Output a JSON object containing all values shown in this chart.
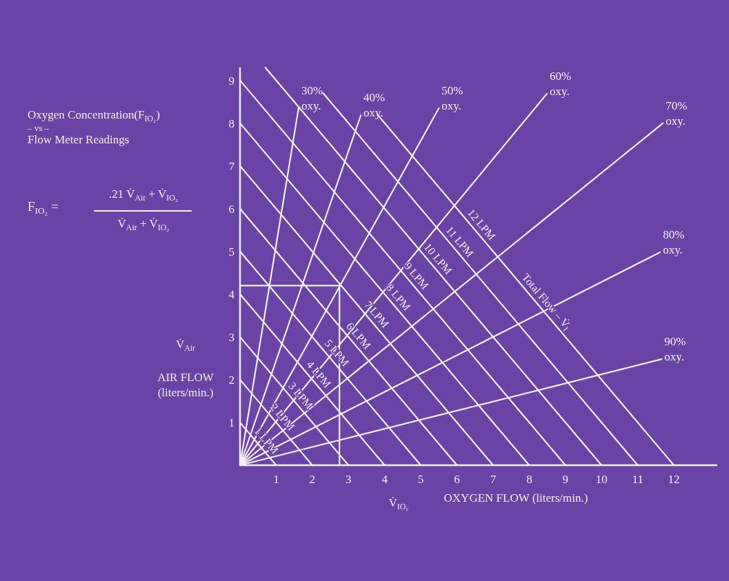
{
  "chart_data": {
    "type": "line",
    "title": "Oxygen Concentration(F$_{IO₂}$)\n– vs –\nFlow Meter Readings",
    "xlabel": "OXYGEN FLOW (liters/min.)",
    "ylabel": "AIR FLOW\n(liters/min.)",
    "xlim": [
      0,
      13.2
    ],
    "ylim": [
      0,
      9.3
    ],
    "xticks": [
      1,
      2,
      3,
      4,
      5,
      6,
      7,
      8,
      9,
      10,
      11,
      12
    ],
    "yticks": [
      1,
      2,
      3,
      4,
      5,
      6,
      7,
      8,
      9
    ],
    "grid": false,
    "marker": "none",
    "line_style": "solid",
    "series": [
      {
        "name": "30% oxy.",
        "color": "#f4f0f8",
        "x": [
          0,
          1.62
        ],
        "values": [
          0,
          8.35
        ]
      },
      {
        "name": "40% oxy.",
        "color": "#f4f0f8",
        "x": [
          0,
          3.34
        ],
        "values": [
          0,
          8.18
        ]
      },
      {
        "name": "50% oxy.",
        "color": "#f4f0f8",
        "x": [
          0,
          5.5
        ],
        "values": [
          0,
          8.35
        ]
      },
      {
        "name": "60% oxy.",
        "color": "#f4f0f8",
        "x": [
          0,
          8.49
        ],
        "values": [
          0,
          8.69
        ]
      },
      {
        "name": "70% oxy.",
        "color": "#f4f0f8",
        "x": [
          0,
          11.7
        ],
        "values": [
          0,
          8.0
        ]
      },
      {
        "name": "80% oxy.",
        "color": "#f4f0f8",
        "x": [
          0,
          11.62
        ],
        "values": [
          0,
          4.98
        ]
      },
      {
        "name": "90% oxy.",
        "color": "#f4f0f8",
        "x": [
          0,
          11.66
        ],
        "values": [
          0,
          2.48
        ]
      },
      {
        "color": "#f4f0f8",
        "x": [
          0,
          1
        ],
        "values": [
          1,
          0
        ]
      },
      {
        "color": "#f4f0f8",
        "x": [
          0,
          2
        ],
        "values": [
          2,
          0
        ]
      },
      {
        "color": "#f4f0f8",
        "x": [
          0,
          3
        ],
        "values": [
          3,
          0
        ]
      },
      {
        "color": "#f4f0f8",
        "x": [
          0,
          4
        ],
        "values": [
          4,
          0
        ]
      },
      {
        "color": "#f4f0f8",
        "x": [
          0,
          5
        ],
        "values": [
          5,
          0
        ]
      },
      {
        "color": "#f4f0f8",
        "x": [
          0,
          6
        ],
        "values": [
          6,
          0
        ]
      },
      {
        "color": "#f4f0f8",
        "x": [
          0,
          7
        ],
        "values": [
          7,
          0
        ]
      },
      {
        "color": "#f4f0f8",
        "x": [
          0,
          8
        ],
        "values": [
          8,
          0
        ]
      },
      {
        "color": "#f4f0f8",
        "x": [
          0,
          9
        ],
        "values": [
          9,
          0
        ]
      },
      {
        "color": "#f4f0f8",
        "x": [
          0.7,
          10
        ],
        "values": [
          9.3,
          0
        ]
      },
      {
        "color": "#f4f0f8",
        "x": [
          2.3,
          11
        ],
        "values": [
          8.7,
          0
        ]
      },
      {
        "color": "#f4f0f8",
        "x": [
          3.8,
          12
        ],
        "values": [
          8.2,
          0
        ]
      },
      {
        "color": "#f4f0f8",
        "x": [
          0,
          2.75,
          2.75
        ],
        "values": [
          4.2,
          4.2,
          0
        ]
      }
    ],
    "annotations": [
      "F$_{IO₂}$ =",
      ".21 V̇$_{Air}$ + V̇$_{IO₂}$",
      "V̇$_{Air}$ + V̇$_{IO₂}$",
      "V̇$_{Air}$",
      "V̇$_{IO₂}$",
      {
        "text": "1 LPM",
        "x": 0.55,
        "y": 0.45
      },
      {
        "text": "2 LPM",
        "x": 1,
        "y": 1
      },
      {
        "text": "3 LPM",
        "x": 1.5,
        "y": 1.5
      },
      {
        "text": "4 LPM",
        "x": 2,
        "y": 2
      },
      {
        "text": "5 LPM",
        "x": 2.5,
        "y": 2.5
      },
      {
        "text": "6 LPM",
        "x": 3.1,
        "y": 2.9
      },
      {
        "text": "7 LPM",
        "x": 3.6,
        "y": 3.4
      },
      {
        "text": "8 LPM",
        "x": 4.2,
        "y": 3.8
      },
      {
        "text": "9 LPM",
        "x": 4.7,
        "y": 4.3
      },
      {
        "text": "10 LPM",
        "x": 5.3,
        "y": 4.7
      },
      {
        "text": "11 LPM",
        "x": 5.9,
        "y": 5.1
      },
      {
        "text": "12 LPM",
        "x": 6.5,
        "y": 5.5
      },
      {
        "text": "Total Flow – V̇$_{I}$",
        "x": 8.3,
        "y": 3.7
      }
    ]
  }
}
